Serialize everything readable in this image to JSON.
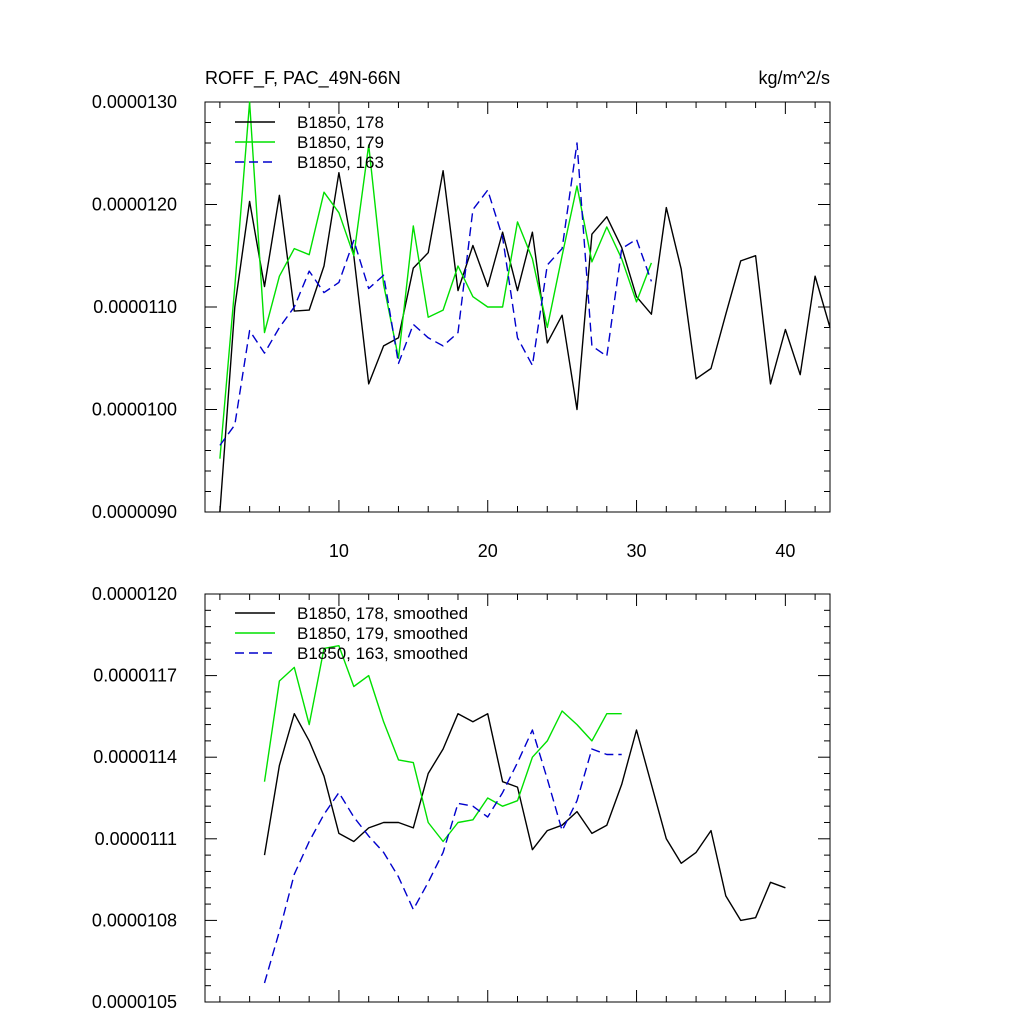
{
  "colors": {
    "black": "#000000",
    "green": "#00e000",
    "blue": "#0000cc"
  },
  "chart_data": [
    {
      "type": "line",
      "title": "ROFF_F, PAC_49N-66N",
      "units": "kg/m^2/s",
      "xlim": [
        1,
        43
      ],
      "ylim": [
        9e-06,
        1.3e-05
      ],
      "xticks": [
        10,
        20,
        30,
        40
      ],
      "xtick_labels": [
        "10",
        "20",
        "30",
        "40"
      ],
      "yticks": [
        9e-06,
        1e-05,
        1.1e-05,
        1.2e-05,
        1.3e-05
      ],
      "ytick_labels": [
        "0.0000090",
        "0.0000100",
        "0.0000110",
        "0.0000120",
        "0.0000130"
      ],
      "legend_position": "top-left",
      "series": [
        {
          "name": "B1850, 178",
          "color": "black",
          "dash": "solid",
          "x": [
            2,
            3,
            4,
            5,
            6,
            7,
            8,
            9,
            10,
            11,
            12,
            13,
            14,
            15,
            16,
            17,
            18,
            19,
            20,
            21,
            22,
            23,
            24,
            25,
            26,
            27,
            28,
            29,
            30,
            31,
            32,
            33,
            34,
            35,
            36,
            37,
            38,
            39,
            40,
            41,
            42,
            43
          ],
          "values": [
            9e-06,
            1.1e-05,
            1.203e-05,
            1.12e-05,
            1.209e-05,
            1.096e-05,
            1.097e-05,
            1.14e-05,
            1.231e-05,
            1.15e-05,
            1.025e-05,
            1.062e-05,
            1.07e-05,
            1.138e-05,
            1.153e-05,
            1.233e-05,
            1.116e-05,
            1.16e-05,
            1.12e-05,
            1.173e-05,
            1.116e-05,
            1.173e-05,
            1.065e-05,
            1.092e-05,
            1e-05,
            1.171e-05,
            1.188e-05,
            1.158e-05,
            1.11e-05,
            1.093e-05,
            1.197e-05,
            1.137e-05,
            1.03e-05,
            1.04e-05,
            1.093e-05,
            1.145e-05,
            1.15e-05,
            1.025e-05,
            1.078e-05,
            1.034e-05,
            1.13e-05,
            1.08e-05
          ]
        },
        {
          "name": "B1850, 179",
          "color": "green",
          "dash": "solid",
          "x": [
            2,
            3,
            4,
            5,
            6,
            7,
            8,
            9,
            10,
            11,
            12,
            13,
            14,
            15,
            16,
            17,
            18,
            19,
            20,
            21,
            22,
            23,
            24,
            25,
            26,
            27,
            28,
            29,
            30,
            31
          ],
          "values": [
            9.52e-06,
            1.12e-05,
            1.3e-05,
            1.075e-05,
            1.13e-05,
            1.157e-05,
            1.151e-05,
            1.212e-05,
            1.192e-05,
            1.15e-05,
            1.258e-05,
            1.122e-05,
            1.05e-05,
            1.179e-05,
            1.09e-05,
            1.097e-05,
            1.14e-05,
            1.11e-05,
            1.1e-05,
            1.1e-05,
            1.183e-05,
            1.147e-05,
            1.08e-05,
            1.15e-05,
            1.218e-05,
            1.144e-05,
            1.178e-05,
            1.147e-05,
            1.105e-05,
            1.143e-05
          ]
        },
        {
          "name": "B1850, 163",
          "color": "blue",
          "dash": "dashed",
          "x": [
            2,
            3,
            4,
            5,
            6,
            7,
            8,
            9,
            10,
            11,
            12,
            13,
            14,
            15,
            16,
            17,
            18,
            19,
            20,
            21,
            22,
            23,
            24,
            25,
            26,
            27,
            28,
            29,
            30,
            31
          ],
          "values": [
            9.65e-06,
            9.85e-06,
            1.077e-05,
            1.055e-05,
            1.08e-05,
            1.1e-05,
            1.135e-05,
            1.114e-05,
            1.124e-05,
            1.165e-05,
            1.118e-05,
            1.131e-05,
            1.045e-05,
            1.083e-05,
            1.07e-05,
            1.062e-05,
            1.075e-05,
            1.195e-05,
            1.214e-05,
            1.168e-05,
            1.07e-05,
            1.043e-05,
            1.141e-05,
            1.157e-05,
            1.26e-05,
            1.062e-05,
            1.052e-05,
            1.157e-05,
            1.166e-05,
            1.125e-05
          ]
        }
      ]
    },
    {
      "type": "line",
      "title": "",
      "xlim": [
        1,
        43
      ],
      "ylim": [
        1.05e-05,
        1.2e-05
      ],
      "xticks": [
        10,
        20,
        30,
        40
      ],
      "yticks": [
        1.05e-05,
        1.08e-05,
        1.11e-05,
        1.14e-05,
        1.17e-05,
        1.2e-05
      ],
      "ytick_labels": [
        "0.0000105",
        "0.0000108",
        "0.0000111",
        "0.0000114",
        "0.0000117",
        "0.0000120"
      ],
      "legend_position": "top-left",
      "series": [
        {
          "name": "B1850, 178, smoothed",
          "color": "black",
          "dash": "solid",
          "x": [
            5,
            6,
            7,
            8,
            9,
            10,
            11,
            12,
            13,
            14,
            15,
            16,
            17,
            18,
            19,
            20,
            21,
            22,
            23,
            24,
            25,
            26,
            27,
            28,
            29,
            30,
            31,
            32,
            33,
            34,
            35,
            36,
            37,
            38,
            39,
            40
          ],
          "values": [
            1.104e-05,
            1.137e-05,
            1.156e-05,
            1.146e-05,
            1.133e-05,
            1.112e-05,
            1.109e-05,
            1.114e-05,
            1.116e-05,
            1.116e-05,
            1.114e-05,
            1.134e-05,
            1.143e-05,
            1.156e-05,
            1.153e-05,
            1.156e-05,
            1.131e-05,
            1.129e-05,
            1.106e-05,
            1.113e-05,
            1.115e-05,
            1.12e-05,
            1.112e-05,
            1.115e-05,
            1.13e-05,
            1.15e-05,
            1.13e-05,
            1.11e-05,
            1.101e-05,
            1.105e-05,
            1.113e-05,
            1.089e-05,
            1.08e-05,
            1.081e-05,
            1.094e-05,
            1.092e-05
          ]
        },
        {
          "name": "B1850, 179, smoothed",
          "color": "green",
          "dash": "solid",
          "x": [
            5,
            6,
            7,
            8,
            9,
            10,
            11,
            12,
            13,
            14,
            15,
            16,
            17,
            18,
            19,
            20,
            21,
            22,
            23,
            24,
            25,
            26,
            27,
            28,
            29
          ],
          "values": [
            1.131e-05,
            1.168e-05,
            1.173e-05,
            1.152e-05,
            1.18e-05,
            1.181e-05,
            1.166e-05,
            1.17e-05,
            1.153e-05,
            1.139e-05,
            1.138e-05,
            1.116e-05,
            1.109e-05,
            1.116e-05,
            1.117e-05,
            1.125e-05,
            1.122e-05,
            1.124e-05,
            1.14e-05,
            1.146e-05,
            1.157e-05,
            1.152e-05,
            1.146e-05,
            1.156e-05,
            1.156e-05
          ]
        },
        {
          "name": "B1850, 163, smoothed",
          "color": "blue",
          "dash": "dashed",
          "x": [
            5,
            6,
            7,
            8,
            9,
            10,
            11,
            12,
            13,
            14,
            15,
            16,
            17,
            18,
            19,
            20,
            21,
            22,
            23,
            24,
            25,
            26,
            27,
            28,
            29
          ],
          "values": [
            1.057e-05,
            1.076e-05,
            1.097e-05,
            1.109e-05,
            1.119e-05,
            1.127e-05,
            1.118e-05,
            1.111e-05,
            1.105e-05,
            1.096e-05,
            1.084e-05,
            1.094e-05,
            1.105e-05,
            1.123e-05,
            1.122e-05,
            1.118e-05,
            1.127e-05,
            1.138e-05,
            1.15e-05,
            1.132e-05,
            1.113e-05,
            1.124e-05,
            1.143e-05,
            1.141e-05,
            1.141e-05
          ]
        }
      ]
    }
  ]
}
